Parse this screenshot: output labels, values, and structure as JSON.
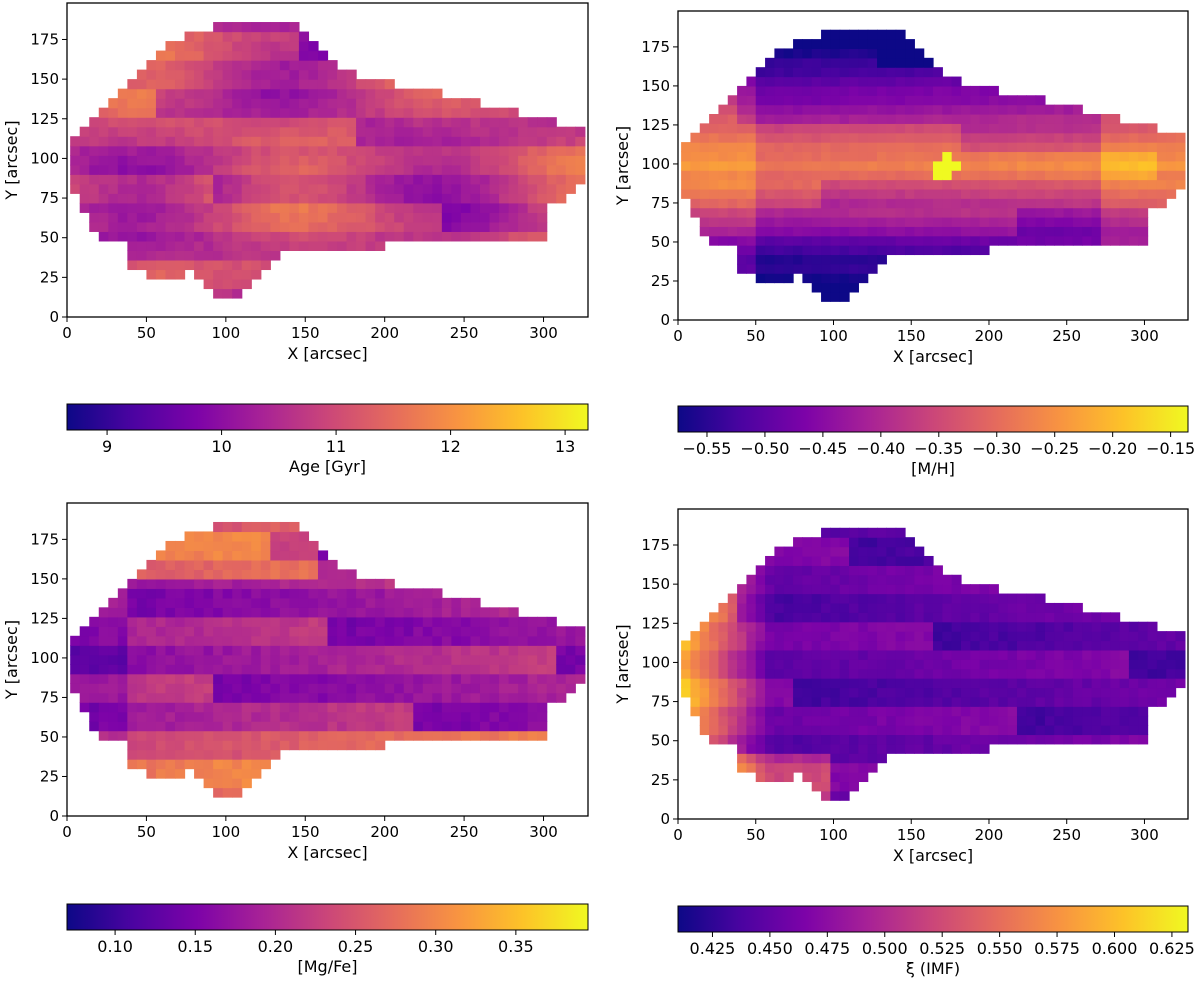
{
  "chart_data": [
    {
      "type": "heatmap",
      "title": "",
      "xlabel": "X [arcsec]",
      "ylabel": "Y [arcsec]",
      "xlim": [
        0,
        328
      ],
      "ylim": [
        0,
        198
      ],
      "xticks": [
        0,
        50,
        100,
        150,
        200,
        250,
        300
      ],
      "yticks": [
        0,
        25,
        50,
        75,
        100,
        125,
        150,
        175
      ],
      "colorbar": {
        "label": "Age [Gyr]",
        "colormap": "plasma",
        "range": [
          8.65,
          13.2
        ],
        "ticks": [
          9,
          10,
          11,
          12,
          13
        ],
        "tick_labels": [
          "9",
          "10",
          "11",
          "12",
          "13"
        ]
      }
    },
    {
      "type": "heatmap",
      "title": "",
      "xlabel": "X [arcsec]",
      "ylabel": "Y [arcsec]",
      "xlim": [
        0,
        328
      ],
      "ylim": [
        0,
        198
      ],
      "xticks": [
        0,
        50,
        100,
        150,
        200,
        250,
        300
      ],
      "yticks": [
        0,
        25,
        50,
        75,
        100,
        125,
        150,
        175
      ],
      "colorbar": {
        "label": "[M/H]",
        "colormap": "plasma",
        "range": [
          -0.575,
          -0.135
        ],
        "ticks": [
          -0.55,
          -0.5,
          -0.45,
          -0.4,
          -0.35,
          -0.3,
          -0.25,
          -0.2,
          -0.15
        ],
        "tick_labels": [
          "−0.55",
          "−0.50",
          "−0.45",
          "−0.40",
          "−0.35",
          "−0.30",
          "−0.25",
          "−0.20",
          "−0.15"
        ]
      }
    },
    {
      "type": "heatmap",
      "title": "",
      "xlabel": "X [arcsec]",
      "ylabel": "Y [arcsec]",
      "xlim": [
        0,
        328
      ],
      "ylim": [
        0,
        198
      ],
      "xticks": [
        0,
        50,
        100,
        150,
        200,
        250,
        300
      ],
      "yticks": [
        0,
        25,
        50,
        75,
        100,
        125,
        150,
        175
      ],
      "colorbar": {
        "label": "[Mg/Fe]",
        "colormap": "plasma",
        "range": [
          0.07,
          0.395
        ],
        "ticks": [
          0.1,
          0.15,
          0.2,
          0.25,
          0.3,
          0.35
        ],
        "tick_labels": [
          "0.10",
          "0.15",
          "0.20",
          "0.25",
          "0.30",
          "0.35"
        ]
      }
    },
    {
      "type": "heatmap",
      "title": "",
      "xlabel": "X [arcsec]",
      "ylabel": "Y [arcsec]",
      "xlim": [
        0,
        328
      ],
      "ylim": [
        0,
        198
      ],
      "xticks": [
        0,
        50,
        100,
        150,
        200,
        250,
        300
      ],
      "yticks": [
        0,
        25,
        50,
        75,
        100,
        125,
        150,
        175
      ],
      "colorbar": {
        "label": "ξ (IMF)",
        "colormap": "plasma",
        "range": [
          0.41,
          0.632
        ],
        "ticks": [
          0.425,
          0.45,
          0.475,
          0.5,
          0.525,
          0.55,
          0.575,
          0.6,
          0.625
        ],
        "tick_labels": [
          "0.425",
          "0.450",
          "0.475",
          "0.500",
          "0.525",
          "0.550",
          "0.575",
          "0.600",
          "0.625"
        ]
      }
    }
  ]
}
